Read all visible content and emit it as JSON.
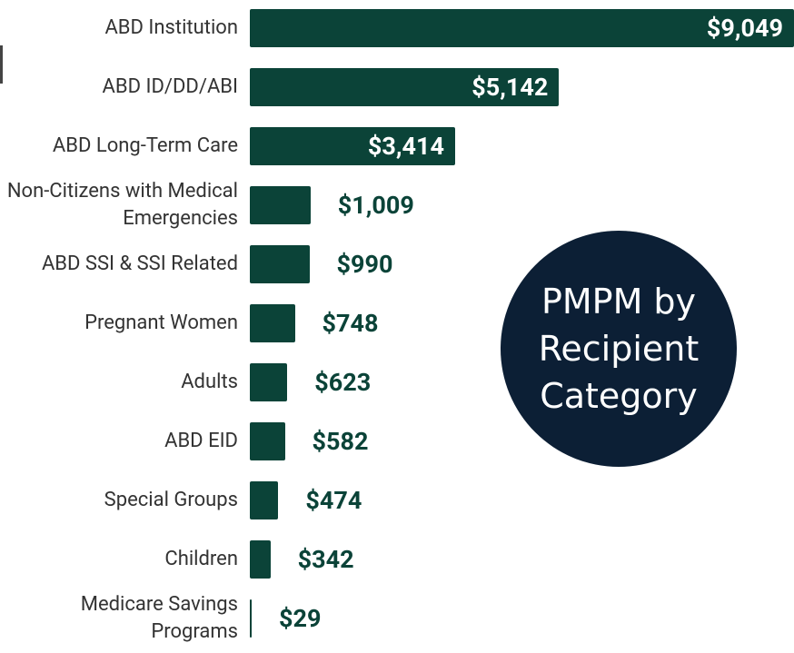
{
  "chart_data": {
    "type": "bar",
    "orientation": "horizontal",
    "title": "PMPM by Recipient Category",
    "categories": [
      "ABD Institution",
      "ABD ID/DD/ABI",
      "ABD Long-Term Care",
      "Non-Citizens with Medical Emergencies",
      "ABD SSI & SSI Related",
      "Pregnant Women",
      "Adults",
      "ABD EID",
      "Special Groups",
      "Children",
      "Medicare Savings Programs"
    ],
    "values": [
      9049,
      5142,
      3414,
      1009,
      990,
      748,
      623,
      582,
      474,
      342,
      29
    ],
    "value_labels": [
      "$9,049",
      "$5,142",
      "$3,414",
      "$1,009",
      "$990",
      "$748",
      "$623",
      "$582",
      "$474",
      "$342",
      "$29"
    ],
    "color": "#0b4338"
  }
}
